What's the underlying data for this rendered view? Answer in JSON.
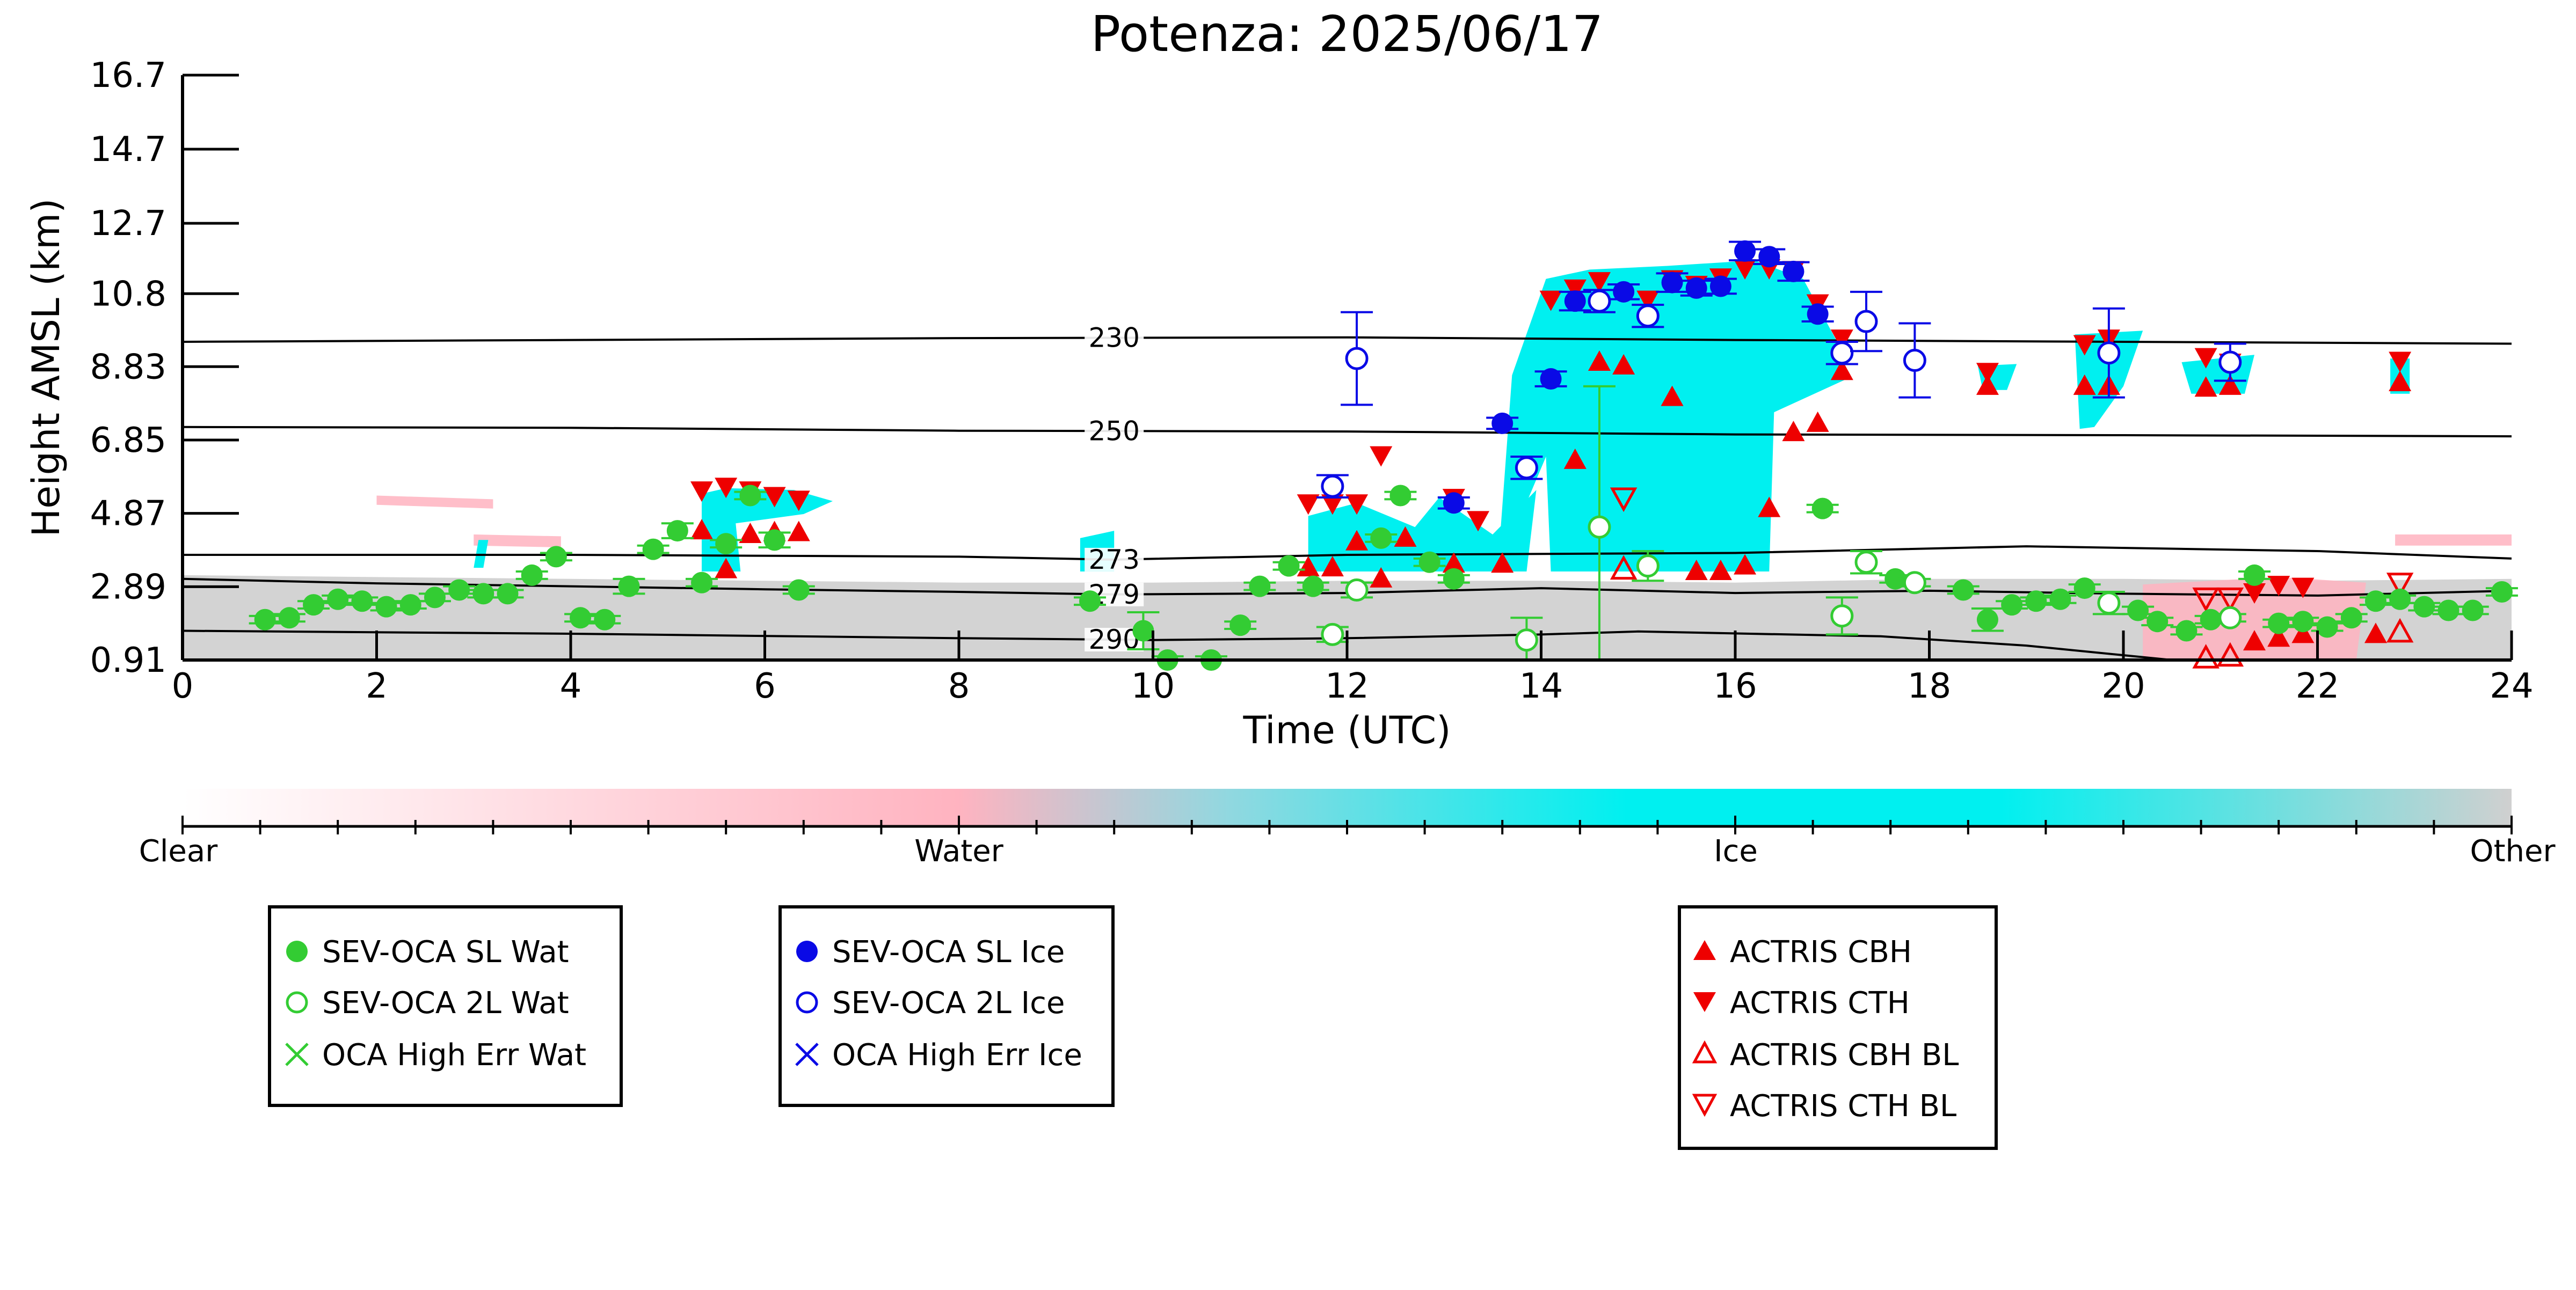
{
  "chart_data": {
    "type": "scatter",
    "title": "Potenza: 2025/06/17",
    "xlabel": "Time (UTC)",
    "ylabel": "Height AMSL (km)",
    "xlim": [
      0,
      24
    ],
    "ylim": [
      0.91,
      16.7
    ],
    "x_ticks": [
      "0",
      "2",
      "4",
      "6",
      "8",
      "10",
      "12",
      "14",
      "16",
      "18",
      "20",
      "22",
      "24"
    ],
    "y_ticks": [
      "0.91",
      "2.89",
      "4.87",
      "6.85",
      "8.83",
      "10.8",
      "12.7",
      "14.7",
      "16.7"
    ],
    "grid": false,
    "isotherms": [
      {
        "label": "230",
        "label_x": 9.6,
        "points": [
          [
            0,
            9.5
          ],
          [
            4,
            9.55
          ],
          [
            8,
            9.6
          ],
          [
            12,
            9.62
          ],
          [
            16,
            9.55
          ],
          [
            20,
            9.5
          ],
          [
            24,
            9.45
          ]
        ]
      },
      {
        "label": "250",
        "label_x": 9.6,
        "points": [
          [
            0,
            7.2
          ],
          [
            4,
            7.18
          ],
          [
            8,
            7.1
          ],
          [
            12,
            7.08
          ],
          [
            16,
            7.0
          ],
          [
            20,
            6.98
          ],
          [
            24,
            6.95
          ]
        ]
      },
      {
        "label": "273",
        "label_x": 9.6,
        "points": [
          [
            0,
            3.75
          ],
          [
            4,
            3.75
          ],
          [
            8,
            3.7
          ],
          [
            9.6,
            3.62
          ],
          [
            12,
            3.75
          ],
          [
            16,
            3.8
          ],
          [
            19,
            3.98
          ],
          [
            22,
            3.85
          ],
          [
            24,
            3.65
          ]
        ]
      },
      {
        "label": "279",
        "label_x": 9.6,
        "points": [
          [
            0,
            3.1
          ],
          [
            2,
            2.98
          ],
          [
            4,
            2.9
          ],
          [
            6,
            2.82
          ],
          [
            8,
            2.75
          ],
          [
            9.6,
            2.68
          ],
          [
            12,
            2.72
          ],
          [
            14,
            2.85
          ],
          [
            16,
            2.72
          ],
          [
            18,
            2.78
          ],
          [
            20,
            2.7
          ],
          [
            22,
            2.65
          ],
          [
            24,
            2.78
          ]
        ]
      },
      {
        "label": "290",
        "label_x": 9.6,
        "points": [
          [
            0,
            1.7
          ],
          [
            4,
            1.62
          ],
          [
            8,
            1.5
          ],
          [
            10,
            1.45
          ],
          [
            12,
            1.5
          ],
          [
            14,
            1.6
          ],
          [
            15,
            1.68
          ],
          [
            17.5,
            1.55
          ],
          [
            19,
            1.3
          ],
          [
            20.5,
            0.91
          ]
        ]
      }
    ],
    "colorbar": {
      "labels": [
        "Clear",
        "Water",
        "Ice",
        "Other"
      ],
      "stops": [
        "#ffffff",
        "#ffb3c0",
        "#00f0f0",
        "#d0d0d0"
      ]
    },
    "legends": [
      [
        "SEV-OCA SL Wat",
        "SEV-OCA 2L Wat",
        "OCA High Err Wat"
      ],
      [
        "SEV-OCA SL Ice",
        "SEV-OCA 2L Ice",
        "OCA High Err Ice"
      ],
      [
        "ACTRIS CBH",
        "ACTRIS CTH",
        "ACTRIS CBH BL",
        "ACTRIS CTH BL"
      ]
    ],
    "colors": {
      "water": "#33cc33",
      "ice": "#0a0ae6",
      "actris": "#ee0000",
      "ice_cloud": "#00f0f0",
      "water_cloud": "#ffb3c0",
      "other": "#d3d3d3"
    },
    "background": {
      "other": [
        [
          0,
          0.91
        ],
        [
          0,
          3.2
        ],
        [
          2,
          3.15
        ],
        [
          4,
          3.1
        ],
        [
          6,
          3.05
        ],
        [
          8,
          3.0
        ],
        [
          10,
          3.0
        ],
        [
          12,
          3.05
        ],
        [
          14,
          3.05
        ],
        [
          16,
          3.0
        ],
        [
          18,
          3.1
        ],
        [
          20,
          3.1
        ],
        [
          22,
          3.05
        ],
        [
          24,
          3.1
        ],
        [
          24,
          0.91
        ]
      ],
      "ice_regions": [
        [
          [
            5.35,
            3.3
          ],
          [
            5.35,
            5.4
          ],
          [
            5.6,
            5.55
          ],
          [
            6.3,
            5.5
          ],
          [
            6.7,
            5.2
          ],
          [
            6.4,
            4.85
          ],
          [
            5.7,
            4.6
          ],
          [
            5.75,
            3.3
          ]
        ],
        [
          [
            11.6,
            3.3
          ],
          [
            11.6,
            4.8
          ],
          [
            12.1,
            5.15
          ],
          [
            12.7,
            4.5
          ],
          [
            12.95,
            5.3
          ],
          [
            13.5,
            4.3
          ],
          [
            13.95,
            5.5
          ],
          [
            13.85,
            3.3
          ]
        ],
        [
          [
            13.55,
            3.3
          ],
          [
            13.7,
            8.6
          ],
          [
            14.05,
            11.2
          ],
          [
            14.5,
            11.45
          ],
          [
            15.3,
            11.55
          ],
          [
            16.2,
            11.7
          ],
          [
            16.7,
            11.2
          ],
          [
            17.05,
            9.5
          ],
          [
            17.15,
            8.5
          ],
          [
            16.4,
            7.6
          ],
          [
            16.35,
            3.3
          ],
          [
            14.1,
            3.3
          ],
          [
            14.05,
            6.4
          ]
        ],
        [
          [
            18.55,
            8.2
          ],
          [
            18.5,
            8.85
          ],
          [
            18.9,
            8.9
          ],
          [
            18.8,
            8.2
          ]
        ],
        [
          [
            19.55,
            7.15
          ],
          [
            19.5,
            9.7
          ],
          [
            20.2,
            9.8
          ],
          [
            20.0,
            8.3
          ],
          [
            19.7,
            7.2
          ]
        ],
        [
          [
            20.7,
            8.1
          ],
          [
            20.6,
            8.95
          ],
          [
            21.35,
            9.15
          ],
          [
            21.25,
            8.1
          ]
        ],
        [
          [
            22.75,
            8.1
          ],
          [
            22.75,
            9.05
          ],
          [
            22.95,
            9.05
          ],
          [
            22.95,
            8.1
          ]
        ],
        [
          [
            9.25,
            3.3
          ],
          [
            9.25,
            4.2
          ],
          [
            9.6,
            4.4
          ],
          [
            9.6,
            3.3
          ]
        ],
        [
          [
            3.0,
            3.4
          ],
          [
            3.05,
            4.15
          ],
          [
            3.15,
            4.15
          ],
          [
            3.1,
            3.4
          ]
        ]
      ],
      "water_regions": [
        [
          [
            20.2,
            0.91
          ],
          [
            20.2,
            2.95
          ],
          [
            21.6,
            3.15
          ],
          [
            22.5,
            3.0
          ],
          [
            22.4,
            0.91
          ]
        ],
        [
          [
            2.0,
            5.1
          ],
          [
            2.0,
            5.35
          ],
          [
            3.2,
            5.25
          ],
          [
            3.2,
            5.0
          ]
        ],
        [
          [
            3.0,
            4.0
          ],
          [
            3.0,
            4.3
          ],
          [
            3.9,
            4.25
          ],
          [
            3.9,
            3.95
          ]
        ],
        [
          [
            22.8,
            4.0
          ],
          [
            22.8,
            4.3
          ],
          [
            24,
            4.3
          ],
          [
            24,
            4.0
          ]
        ]
      ]
    },
    "series": [
      {
        "name": "SEV-OCA SL Wat",
        "x": [
          0.85,
          1.1,
          1.35,
          1.6,
          1.85,
          2.1,
          2.35,
          2.6,
          2.85,
          3.1,
          3.35,
          3.6,
          3.85,
          4.1,
          4.35,
          4.6,
          4.85,
          5.1,
          5.35,
          5.6,
          5.85,
          6.1,
          6.35,
          9.35,
          9.9,
          10.15,
          10.6,
          10.9,
          11.1,
          11.4,
          11.65,
          12.35,
          12.55,
          12.85,
          13.1,
          16.9,
          17.65,
          18.35,
          18.6,
          18.85,
          19.1,
          19.35,
          19.6,
          20.15,
          20.35,
          20.65,
          20.9,
          21.35,
          21.6,
          21.85,
          22.1,
          22.35,
          22.6,
          22.85,
          23.1,
          23.35,
          23.6,
          23.9
        ],
        "y": [
          2.0,
          2.05,
          2.4,
          2.55,
          2.5,
          2.35,
          2.4,
          2.6,
          2.8,
          2.7,
          2.7,
          3.2,
          3.7,
          2.05,
          2.0,
          2.9,
          3.9,
          4.4,
          3.0,
          4.05,
          5.35,
          4.15,
          2.8,
          2.5,
          1.7,
          0.91,
          0.91,
          1.85,
          2.9,
          3.45,
          2.9,
          4.2,
          5.35,
          3.55,
          3.1,
          5.0,
          3.1,
          2.8,
          2.0,
          2.4,
          2.5,
          2.55,
          2.85,
          2.25,
          1.95,
          1.7,
          2.0,
          3.2,
          1.9,
          1.95,
          1.8,
          2.05,
          2.5,
          2.55,
          2.35,
          2.25,
          2.25,
          2.75
        ],
        "yerr": [
          0.1,
          0.1,
          0.1,
          0.1,
          0.1,
          0.1,
          0.1,
          0.1,
          0.1,
          0.1,
          0.1,
          0.1,
          0.1,
          0.1,
          0.1,
          0.2,
          0.1,
          0.2,
          0.1,
          0.1,
          0.1,
          0.2,
          0.1,
          0.1,
          0.5,
          0.1,
          0.1,
          0.1,
          0.1,
          0.1,
          0.1,
          0.1,
          0.1,
          0.1,
          0.1,
          0.1,
          0.1,
          0.1,
          0.3,
          0.1,
          0.1,
          0.1,
          0.1,
          0.1,
          0.1,
          0.1,
          0.1,
          0.1,
          0.1,
          0.1,
          0.1,
          0.1,
          0.1,
          0.1,
          0.1,
          0.1,
          0.1,
          0.1
        ]
      },
      {
        "name": "SEV-OCA 2L Wat",
        "x": [
          11.85,
          12.1,
          13.85,
          14.6,
          15.1,
          17.1,
          17.35,
          17.85,
          19.85,
          21.1
        ],
        "y": [
          1.6,
          2.8,
          1.45,
          4.5,
          3.45,
          2.1,
          3.55,
          3.0,
          2.45,
          2.05
        ],
        "yerr": [
          0.2,
          0.2,
          0.6,
          3.8,
          0.4,
          0.5,
          0.3,
          0.1,
          0.3,
          0.1
        ]
      },
      {
        "name": "SEV-OCA SL Ice",
        "x": [
          13.1,
          13.6,
          14.1,
          14.35,
          14.85,
          15.35,
          15.6,
          15.85,
          16.1,
          16.35,
          16.6,
          16.85
        ],
        "y": [
          5.15,
          7.3,
          8.5,
          10.6,
          10.85,
          11.1,
          10.95,
          11.0,
          11.95,
          11.8,
          11.4,
          10.25
        ],
        "yerr": [
          0.15,
          0.15,
          0.2,
          0.25,
          0.2,
          0.25,
          0.2,
          0.2,
          0.25,
          0.2,
          0.25,
          0.2
        ]
      },
      {
        "name": "SEV-OCA 2L Ice",
        "x": [
          11.85,
          12.1,
          13.85,
          14.6,
          15.1,
          17.1,
          17.35,
          17.85,
          19.85,
          21.1
        ],
        "y": [
          5.6,
          9.05,
          6.1,
          10.6,
          10.2,
          9.2,
          10.05,
          9.0,
          9.2,
          8.95
        ],
        "yerr": [
          0.3,
          1.25,
          0.3,
          0.3,
          0.3,
          0.3,
          0.8,
          1.0,
          1.2,
          0.5
        ]
      },
      {
        "name": "OCA High Err Wat",
        "x": [],
        "y": []
      },
      {
        "name": "OCA High Err Ice",
        "x": [],
        "y": []
      },
      {
        "name": "ACTRIS CBH",
        "x": [
          5.35,
          5.6,
          5.85,
          6.1,
          6.35,
          11.6,
          11.85,
          12.1,
          12.35,
          12.6,
          13.1,
          13.6,
          14.35,
          14.6,
          14.85,
          15.35,
          15.6,
          15.85,
          16.1,
          16.35,
          16.6,
          16.85,
          17.1,
          18.6,
          19.6,
          19.85,
          20.85,
          21.1,
          21.35,
          21.6,
          21.85,
          22.6,
          22.85
        ],
        "y": [
          4.4,
          3.35,
          4.3,
          4.35,
          4.35,
          3.4,
          3.4,
          4.1,
          3.1,
          4.2,
          3.5,
          3.5,
          6.3,
          8.95,
          8.85,
          8.0,
          3.3,
          3.3,
          3.45,
          5.0,
          7.05,
          7.3,
          8.7,
          8.3,
          8.3,
          8.3,
          8.25,
          8.3,
          1.4,
          1.5,
          1.6,
          1.6,
          8.4
        ],
        "yerr": [
          0,
          0,
          0,
          0,
          0,
          0,
          0,
          0,
          0,
          0,
          0,
          0,
          0,
          0,
          0,
          0,
          0,
          0,
          0,
          0,
          0,
          0,
          0,
          0,
          0,
          0,
          0,
          0,
          0,
          0,
          0,
          0,
          0
        ]
      },
      {
        "name": "ACTRIS CTH",
        "x": [
          5.35,
          5.6,
          5.85,
          6.1,
          6.35,
          11.6,
          11.85,
          12.1,
          12.35,
          13.1,
          13.35,
          14.1,
          14.35,
          14.6,
          15.1,
          15.35,
          15.6,
          15.85,
          16.1,
          16.35,
          16.6,
          16.85,
          17.1,
          18.6,
          19.6,
          19.85,
          20.85,
          21.1,
          21.35,
          21.6,
          21.85,
          22.85
        ],
        "y": [
          5.5,
          5.6,
          5.5,
          5.35,
          5.25,
          5.15,
          5.15,
          5.15,
          6.45,
          5.3,
          4.7,
          10.65,
          10.95,
          11.15,
          10.65,
          11.2,
          11.05,
          11.25,
          11.5,
          11.5,
          11.45,
          10.55,
          9.6,
          8.7,
          9.45,
          9.6,
          9.1,
          8.95,
          2.75,
          2.95,
          2.9,
          9.0
        ],
        "yerr": [
          0,
          0,
          0,
          0,
          0,
          0,
          0,
          0,
          0,
          0,
          0,
          0,
          0,
          0,
          0,
          0,
          0,
          0,
          0,
          0,
          0,
          0,
          0,
          0,
          0,
          0,
          0,
          0,
          0,
          0,
          0,
          0
        ]
      },
      {
        "name": "ACTRIS CBH BL",
        "x": [
          14.85,
          20.85,
          21.1,
          22.85
        ],
        "y": [
          3.35,
          0.95,
          1.0,
          1.65
        ],
        "yerr": [
          0,
          0,
          0,
          0
        ]
      },
      {
        "name": "ACTRIS CTH BL",
        "x": [
          14.85,
          20.85,
          21.1,
          22.85
        ],
        "y": [
          5.3,
          2.6,
          2.6,
          3.0
        ],
        "yerr": [
          0,
          0,
          0,
          0
        ]
      }
    ]
  }
}
